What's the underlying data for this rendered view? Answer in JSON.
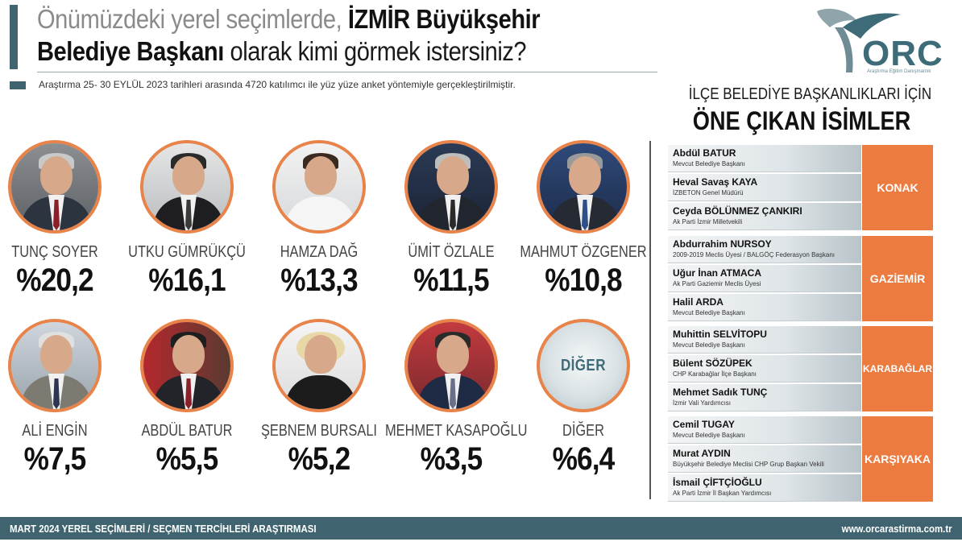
{
  "header": {
    "title_line1_light": "Önümüzdeki yerel seçimlerde, ",
    "title_line1_bold": "İZMİR Büyükşehir",
    "title_line2_bold": "Belediye Başkanı",
    "title_line2_rest": " olarak kimi görmek istersiniz?",
    "subtitle": "Araştırma 25- 30 EYLÜL 2023 tarihleri arasında 4720 katılımcı ile yüz yüze anket yöntemiyle gerçekleştirilmiştir."
  },
  "logo": {
    "text": "ORC",
    "tagline": "Araştırma Eğitim Danışmanlık"
  },
  "candidates": [
    {
      "name": "TUNÇ SOYER",
      "pct": "%20,2"
    },
    {
      "name": "UTKU GÜMRÜKÇÜ",
      "pct": "%16,1"
    },
    {
      "name": "HAMZA DAĞ",
      "pct": "%13,3"
    },
    {
      "name": "ÜMİT ÖZLALE",
      "pct": "%11,5"
    },
    {
      "name": "MAHMUT ÖZGENER",
      "pct": "%10,8"
    },
    {
      "name": "ALİ ENGİN",
      "pct": "%7,5"
    },
    {
      "name": "ABDÜL BATUR",
      "pct": "%5,5"
    },
    {
      "name": "ŞEBNEM BURSALI",
      "pct": "%5,2"
    },
    {
      "name": "MEHMET KASAPOĞLU",
      "pct": "%3,5"
    },
    {
      "name": "DİĞER",
      "pct": "%6,4",
      "circle_label": "DİĞER"
    }
  ],
  "panel": {
    "title1": "İLÇE BELEDİYE BAŞKANLIKLARI İÇİN",
    "title2": "ÖNE ÇIKAN İSİMLER",
    "groups": [
      {
        "district": "KONAK",
        "people": [
          {
            "name": "Abdül BATUR",
            "role": "Mevcut Belediye Başkanı"
          },
          {
            "name": "Heval Savaş KAYA",
            "role": "İZBETON Genel Müdürü"
          },
          {
            "name": "Ceyda BÖLÜNMEZ ÇANKIRI",
            "role": "Ak Parti İzmir Milletvekili"
          }
        ]
      },
      {
        "district": "GAZİEMİR",
        "people": [
          {
            "name": "Abdurrahim NURSOY",
            "role": "2009-2019 Meclis Üyesi / BALGÖÇ Federasyon Başkanı"
          },
          {
            "name": "Uğur İnan ATMACA",
            "role": "Ak Parti Gaziemir Meclis Üyesi"
          },
          {
            "name": "Halil ARDA",
            "role": "Mevcut Belediye Başkanı"
          }
        ]
      },
      {
        "district": "KARABAĞLAR",
        "people": [
          {
            "name": "Muhittin SELVİTOPU",
            "role": "Mevcut Belediye Başkanı"
          },
          {
            "name": "Bülent SÖZÜPEK",
            "role": "CHP Karabağlar İlçe Başkanı"
          },
          {
            "name": "Mehmet Sadık TUNÇ",
            "role": "İzmir Vali Yardımcısı"
          }
        ]
      },
      {
        "district": "KARŞIYAKA",
        "people": [
          {
            "name": "Cemil TUGAY",
            "role": "Mevcut Belediye Başkanı"
          },
          {
            "name": "Murat AYDIN",
            "role": "Büyükşehir Belediye Meclisi CHP Grup Başkan Vekili"
          },
          {
            "name": "İsmail ÇİFTÇİOĞLU",
            "role": "Ak Parti İzmir İl Başkan Yardımcısı"
          }
        ]
      }
    ]
  },
  "footer": {
    "left": "MART 2024 YEREL SEÇİMLERİ / SEÇMEN TERCİHLERİ ARAŞTIRMASI",
    "right": "www.orcarastirma.com.tr"
  },
  "colors": {
    "accent_orange": "#ec7b40",
    "brand_teal": "#3f6470"
  }
}
